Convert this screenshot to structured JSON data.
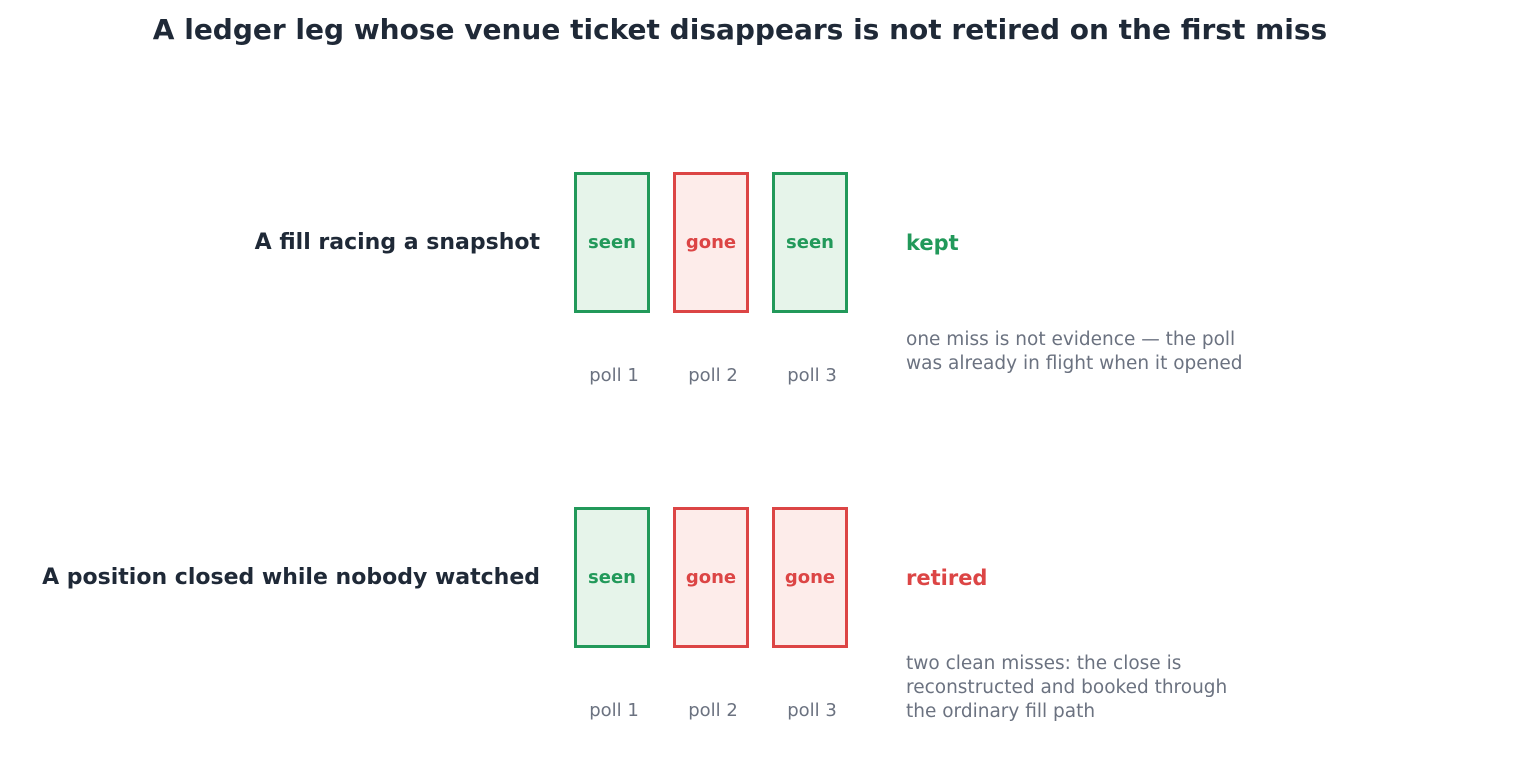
{
  "title": "A ledger leg whose venue ticket disappears is not retired on the first miss",
  "colors": {
    "seen": "#22995a",
    "gone": "#dc4545",
    "text": "#1f2937",
    "muted": "#6b7280"
  },
  "rows": [
    {
      "label": "A fill racing a snapshot",
      "polls": [
        {
          "state": "seen",
          "text": "seen",
          "label": "poll 1"
        },
        {
          "state": "gone",
          "text": "gone",
          "label": "poll 2"
        },
        {
          "state": "seen",
          "text": "seen",
          "label": "poll 3"
        }
      ],
      "outcome": "kept",
      "outcome_state": "seen",
      "note_lines": [
        "one miss is not evidence — the poll",
        "was already in flight when it opened"
      ]
    },
    {
      "label": "A position closed while nobody watched",
      "polls": [
        {
          "state": "seen",
          "text": "seen",
          "label": "poll 1"
        },
        {
          "state": "gone",
          "text": "gone",
          "label": "poll 2"
        },
        {
          "state": "gone",
          "text": "gone",
          "label": "poll 3"
        }
      ],
      "outcome": "retired",
      "outcome_state": "gone",
      "note_lines": [
        "two clean misses: the close is",
        "reconstructed and booked through",
        "the ordinary fill path"
      ]
    }
  ]
}
